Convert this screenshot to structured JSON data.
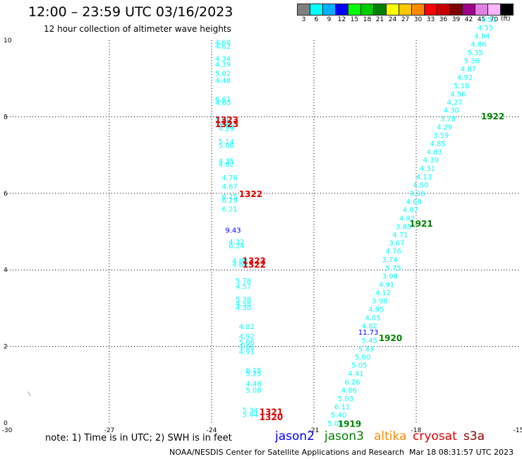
{
  "header": {
    "title": "12:00 – 23:59 UTC 03/16/2023",
    "subtitle": "12 hour collection of altimeter wave heights"
  },
  "colorbar": {
    "unit": "(ft)",
    "entries": [
      {
        "label": "3",
        "color": "#808080"
      },
      {
        "label": "6",
        "color": "#00ffff"
      },
      {
        "label": "9",
        "color": "#00b0ff"
      },
      {
        "label": "12",
        "color": "#0000ff"
      },
      {
        "label": "15",
        "color": "#00ff00"
      },
      {
        "label": "18",
        "color": "#00cc00"
      },
      {
        "label": "21",
        "color": "#008000"
      },
      {
        "label": "24",
        "color": "#ffff00"
      },
      {
        "label": "27",
        "color": "#ffc800"
      },
      {
        "label": "30",
        "color": "#ff8c00"
      },
      {
        "label": "33",
        "color": "#ff0000"
      },
      {
        "label": "36",
        "color": "#c80000"
      },
      {
        "label": "39",
        "color": "#800000"
      },
      {
        "label": "42",
        "color": "#a0008c"
      },
      {
        "label": "45",
        "color": "#e080e0"
      },
      {
        "label": "70",
        "color": "#ffb4ff"
      },
      {
        "label": "",
        "color": "#000000"
      }
    ]
  },
  "chart_data": {
    "type": "scatter",
    "title": "12:00 – 23:59 UTC 03/16/2023",
    "subtitle": "12 hour collection of altimeter wave heights",
    "xlim": [
      -30,
      -15
    ],
    "ylim": [
      0,
      10
    ],
    "x_ticks": [
      "-30",
      "-27",
      "-24",
      "-21",
      "-18",
      "-15"
    ],
    "y_ticks": [
      "0",
      "2",
      "4",
      "6",
      "8",
      "10"
    ],
    "grid": true,
    "wave_heights": [
      {
        "x": -23.1,
        "y": 0.23,
        "text": "5.44",
        "color": "#00ffff"
      },
      {
        "x": -23.1,
        "y": 0.34,
        "text": "5.34",
        "color": "#00ffff"
      },
      {
        "x": -23.0,
        "y": 0.87,
        "text": "5.08",
        "color": "#00ffff"
      },
      {
        "x": -23.0,
        "y": 1.03,
        "text": "4.48",
        "color": "#00ffff"
      },
      {
        "x": -23.0,
        "y": 1.3,
        "text": "5.25",
        "color": "#00ffff"
      },
      {
        "x": -23.0,
        "y": 1.38,
        "text": "6.15",
        "color": "#00ffff"
      },
      {
        "x": -23.2,
        "y": 1.87,
        "text": "4.91",
        "color": "#00ffff"
      },
      {
        "x": -23.2,
        "y": 2.0,
        "text": "4.66",
        "color": "#00ffff"
      },
      {
        "x": -23.2,
        "y": 2.12,
        "text": "5.06",
        "color": "#00ffff"
      },
      {
        "x": -23.2,
        "y": 2.27,
        "text": "4.92",
        "color": "#00ffff"
      },
      {
        "x": -23.2,
        "y": 2.53,
        "text": "4.82",
        "color": "#00ffff"
      },
      {
        "x": -23.3,
        "y": 3.03,
        "text": "4.30",
        "color": "#00ffff"
      },
      {
        "x": -23.3,
        "y": 3.13,
        "text": "4.58",
        "color": "#00ffff"
      },
      {
        "x": -23.3,
        "y": 3.24,
        "text": "5.38",
        "color": "#00ffff"
      },
      {
        "x": -23.3,
        "y": 3.58,
        "text": "4.57",
        "color": "#00ffff"
      },
      {
        "x": -23.3,
        "y": 3.73,
        "text": "5.78",
        "color": "#00ffff"
      },
      {
        "x": -23.4,
        "y": 4.15,
        "text": "4.65",
        "color": "#00ffff"
      },
      {
        "x": -23.4,
        "y": 4.25,
        "text": "4.88",
        "color": "#00ffff"
      },
      {
        "x": -23.5,
        "y": 4.64,
        "text": "6.24",
        "color": "#00ffff"
      },
      {
        "x": -23.5,
        "y": 4.74,
        "text": "4.32",
        "color": "#00ffff"
      },
      {
        "x": -23.6,
        "y": 5.05,
        "text": "9.43",
        "color": "#0000ff"
      },
      {
        "x": -23.7,
        "y": 5.6,
        "text": "6.21",
        "color": "#00ffff"
      },
      {
        "x": -23.7,
        "y": 5.83,
        "text": "6.29",
        "color": "#00ffff"
      },
      {
        "x": -23.7,
        "y": 5.92,
        "text": "6.25",
        "color": "#00ffff"
      },
      {
        "x": -23.7,
        "y": 6.19,
        "text": "4.67",
        "color": "#00ffff"
      },
      {
        "x": -23.7,
        "y": 6.42,
        "text": "4.76",
        "color": "#00ffff"
      },
      {
        "x": -23.8,
        "y": 6.77,
        "text": "4.62",
        "color": "#00ffff"
      },
      {
        "x": -23.8,
        "y": 6.85,
        "text": "4.35",
        "color": "#00ffff"
      },
      {
        "x": -23.8,
        "y": 7.26,
        "text": "5.08",
        "color": "#00ffff"
      },
      {
        "x": -23.8,
        "y": 7.36,
        "text": "5.14",
        "color": "#00ffff"
      },
      {
        "x": -23.8,
        "y": 7.7,
        "text": "4.29",
        "color": "#00ffff"
      },
      {
        "x": -23.8,
        "y": 7.78,
        "text": "4.55",
        "color": "#00ffff"
      },
      {
        "x": -23.9,
        "y": 7.86,
        "text": "4.99",
        "color": "#00ffff"
      },
      {
        "x": -23.9,
        "y": 7.94,
        "text": "5.90",
        "color": "#00ffff"
      },
      {
        "x": -23.9,
        "y": 8.38,
        "text": "4.60",
        "color": "#00ffff"
      },
      {
        "x": -23.9,
        "y": 8.47,
        "text": "6.61",
        "color": "#00ffff"
      },
      {
        "x": -23.9,
        "y": 8.96,
        "text": "4.48",
        "color": "#00ffff"
      },
      {
        "x": -23.9,
        "y": 9.14,
        "text": "5.02",
        "color": "#00ffff"
      },
      {
        "x": -23.9,
        "y": 9.38,
        "text": "4.39",
        "color": "#00ffff"
      },
      {
        "x": -23.9,
        "y": 9.53,
        "text": "4.34",
        "color": "#00ffff"
      },
      {
        "x": -23.9,
        "y": 9.85,
        "text": "4.62",
        "color": "#00ffff"
      },
      {
        "x": -23.9,
        "y": 9.95,
        "text": "4.68",
        "color": "#00ffff"
      },
      {
        "x": -20.6,
        "y": 0.0,
        "text": "5.04",
        "color": "#00ffff"
      },
      {
        "x": -20.5,
        "y": 0.22,
        "text": "5.40",
        "color": "#00ffff"
      },
      {
        "x": -20.4,
        "y": 0.43,
        "text": "6.11",
        "color": "#00ffff"
      },
      {
        "x": -20.3,
        "y": 0.65,
        "text": "5.93",
        "color": "#00ffff"
      },
      {
        "x": -20.2,
        "y": 0.87,
        "text": "4.86",
        "color": "#00ffff"
      },
      {
        "x": -20.1,
        "y": 1.08,
        "text": "6.26",
        "color": "#00ffff"
      },
      {
        "x": -20.0,
        "y": 1.3,
        "text": "4.41",
        "color": "#00ffff"
      },
      {
        "x": -19.9,
        "y": 1.52,
        "text": "5.05",
        "color": "#00ffff"
      },
      {
        "x": -19.8,
        "y": 1.73,
        "text": "5.00",
        "color": "#00ffff"
      },
      {
        "x": -19.7,
        "y": 1.95,
        "text": "5.43",
        "color": "#00ffff"
      },
      {
        "x": -19.6,
        "y": 2.17,
        "text": "5.45",
        "color": "#00ffff"
      },
      {
        "x": -19.7,
        "y": 2.38,
        "text": "11.73",
        "color": "#0000ff"
      },
      {
        "x": -19.6,
        "y": 2.55,
        "text": "4.82",
        "color": "#00ffff"
      },
      {
        "x": -19.5,
        "y": 2.76,
        "text": "4.05",
        "color": "#00ffff"
      },
      {
        "x": -19.4,
        "y": 2.98,
        "text": "4.95",
        "color": "#00ffff"
      },
      {
        "x": -19.3,
        "y": 3.2,
        "text": "3.98",
        "color": "#00ffff"
      },
      {
        "x": -19.2,
        "y": 3.41,
        "text": "4.12",
        "color": "#00ffff"
      },
      {
        "x": -19.1,
        "y": 3.63,
        "text": "4.91",
        "color": "#00ffff"
      },
      {
        "x": -19.0,
        "y": 3.85,
        "text": "3.98",
        "color": "#00ffff"
      },
      {
        "x": -18.9,
        "y": 4.06,
        "text": "5.75",
        "color": "#00ffff"
      },
      {
        "x": -19.0,
        "y": 4.28,
        "text": "3.74",
        "color": "#00ffff"
      },
      {
        "x": -18.9,
        "y": 4.5,
        "text": "4.76",
        "color": "#00ffff"
      },
      {
        "x": -18.8,
        "y": 4.71,
        "text": "3.67",
        "color": "#00ffff"
      },
      {
        "x": -18.7,
        "y": 4.93,
        "text": "4.71",
        "color": "#00ffff"
      },
      {
        "x": -18.6,
        "y": 5.14,
        "text": "3.85",
        "color": "#00ffff"
      },
      {
        "x": -18.5,
        "y": 5.36,
        "text": "4.92",
        "color": "#00ffff"
      },
      {
        "x": -18.4,
        "y": 5.58,
        "text": "4.07",
        "color": "#00ffff"
      },
      {
        "x": -18.3,
        "y": 5.79,
        "text": "4.68",
        "color": "#00ffff"
      },
      {
        "x": -18.2,
        "y": 6.01,
        "text": "3.96",
        "color": "#00ffff"
      },
      {
        "x": -18.1,
        "y": 6.23,
        "text": "4.50",
        "color": "#00ffff"
      },
      {
        "x": -18.0,
        "y": 6.44,
        "text": "4.13",
        "color": "#00ffff"
      },
      {
        "x": -17.9,
        "y": 6.66,
        "text": "4.31",
        "color": "#00ffff"
      },
      {
        "x": -17.8,
        "y": 6.88,
        "text": "4.39",
        "color": "#00ffff"
      },
      {
        "x": -17.7,
        "y": 7.09,
        "text": "4.83",
        "color": "#00ffff"
      },
      {
        "x": -17.6,
        "y": 7.31,
        "text": "4.85",
        "color": "#00ffff"
      },
      {
        "x": -17.5,
        "y": 7.53,
        "text": "3.59",
        "color": "#00ffff"
      },
      {
        "x": -17.4,
        "y": 7.74,
        "text": "4.29",
        "color": "#00ffff"
      },
      {
        "x": -17.3,
        "y": 7.96,
        "text": "3.78",
        "color": "#00ffff"
      },
      {
        "x": -17.2,
        "y": 8.18,
        "text": "4.30",
        "color": "#00ffff"
      },
      {
        "x": -17.1,
        "y": 8.39,
        "text": "4.27",
        "color": "#00ffff"
      },
      {
        "x": -17.0,
        "y": 8.61,
        "text": "4.56",
        "color": "#00ffff"
      },
      {
        "x": -16.9,
        "y": 8.82,
        "text": "5.18",
        "color": "#00ffff"
      },
      {
        "x": -16.8,
        "y": 9.04,
        "text": "4.92",
        "color": "#00ffff"
      },
      {
        "x": -16.7,
        "y": 9.26,
        "text": "4.87",
        "color": "#00ffff"
      },
      {
        "x": -16.6,
        "y": 9.47,
        "text": "5.36",
        "color": "#00ffff"
      },
      {
        "x": -16.5,
        "y": 9.69,
        "text": "5.35",
        "color": "#00ffff"
      },
      {
        "x": -16.4,
        "y": 9.91,
        "text": "4.86",
        "color": "#00ffff"
      },
      {
        "x": -16.3,
        "y": 10.12,
        "text": "4.84",
        "color": "#00ffff"
      },
      {
        "x": -16.2,
        "y": 10.34,
        "text": "4.55",
        "color": "#00ffff"
      },
      {
        "x": -16.1,
        "y": 10.55,
        "text": "4.51",
        "color": "#00ffff"
      }
    ],
    "pass_labels": [
      {
        "x": -22.6,
        "y": 0.17,
        "text": "1320",
        "color": "#e00000"
      },
      {
        "x": -22.6,
        "y": 0.3,
        "text": "1321",
        "color": "#e00000"
      },
      {
        "x": -23.1,
        "y": 4.15,
        "text": "1322",
        "color": "#e00000"
      },
      {
        "x": -23.1,
        "y": 4.25,
        "text": "1323",
        "color": "#e00000"
      },
      {
        "x": -23.2,
        "y": 6.0,
        "text": "1322",
        "color": "#e00000"
      },
      {
        "x": -23.9,
        "y": 7.82,
        "text": "1323",
        "color": "#e00000"
      },
      {
        "x": -23.9,
        "y": 7.93,
        "text": "1323",
        "color": "#e00000"
      },
      {
        "x": -20.3,
        "y": -0.01,
        "text": "1919",
        "color": "#008000"
      },
      {
        "x": -19.1,
        "y": 2.23,
        "text": "1920",
        "color": "#008000"
      },
      {
        "x": -18.2,
        "y": 5.22,
        "text": "1921",
        "color": "#008000"
      },
      {
        "x": -16.1,
        "y": 8.03,
        "text": "1922",
        "color": "#008000"
      }
    ],
    "marks": [
      {
        "x": -29.4,
        "y": 0.82,
        "text": "…",
        "color": "#000000"
      }
    ]
  },
  "footer": {
    "note": "note:  1) Time is in UTC;  2) SWH is in feet",
    "satellites": [
      {
        "name": "jason2",
        "color": "#0000ff"
      },
      {
        "name": "jason3",
        "color": "#008000"
      },
      {
        "name": "altika",
        "color": "#ff8c00"
      },
      {
        "name": "cryosat",
        "color": "#e00000"
      },
      {
        "name": "s3a",
        "color": "#8b0000"
      }
    ],
    "credit": "NOAA/NESDIS Center for Satellite Applications and Research",
    "timestamp": "Mar 18 08:31:57 UTC 2023"
  }
}
